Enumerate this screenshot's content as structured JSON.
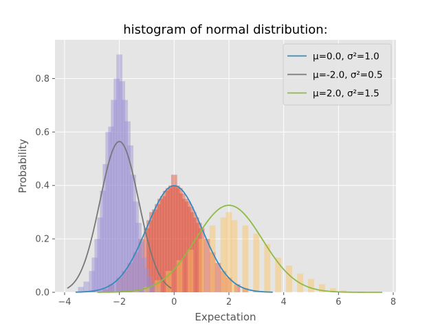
{
  "chart_data": {
    "type": "histogram",
    "title": "histogram of normal distribution:",
    "xlabel": "Expectation",
    "ylabel": "Probability",
    "xlim": [
      -4.35,
      8.1
    ],
    "ylim": [
      0,
      0.945
    ],
    "xticks": [
      -4,
      -2,
      0,
      2,
      4,
      6,
      8
    ],
    "yticks": [
      0.0,
      0.2,
      0.4,
      0.6,
      0.8
    ],
    "xtick_labels": [
      "−4",
      "−2",
      "0",
      "2",
      "4",
      "6",
      "8"
    ],
    "ytick_labels": [
      "0.0",
      "0.2",
      "0.4",
      "0.6",
      "0.8"
    ],
    "grid": true,
    "legend_position": "top-right",
    "background_color": "#e5e5e5",
    "series": [
      {
        "legend_label": "μ=0.0, σ²=1.0",
        "mu": 0.0,
        "sigma2": 1.0,
        "line_color": "#348abd",
        "hist_color": "#e24a33",
        "curve_x_range": [
          -3.6,
          3.6
        ],
        "hist_bins": [
          [
            -3.0,
            0.005
          ],
          [
            -2.5,
            0.012
          ],
          [
            -2.3,
            0.03
          ],
          [
            -2.0,
            0.055
          ],
          [
            -1.8,
            0.08
          ],
          [
            -1.6,
            0.11
          ],
          [
            -1.4,
            0.15
          ],
          [
            -1.2,
            0.2
          ],
          [
            -1.0,
            0.24
          ],
          [
            -0.9,
            0.27
          ],
          [
            -0.8,
            0.3
          ],
          [
            -0.7,
            0.31
          ],
          [
            -0.6,
            0.33
          ],
          [
            -0.5,
            0.35
          ],
          [
            -0.4,
            0.36
          ],
          [
            -0.3,
            0.38
          ],
          [
            -0.2,
            0.39
          ],
          [
            -0.1,
            0.4
          ],
          [
            0.0,
            0.44
          ],
          [
            0.1,
            0.4
          ],
          [
            0.2,
            0.39
          ],
          [
            0.3,
            0.37
          ],
          [
            0.4,
            0.35
          ],
          [
            0.5,
            0.34
          ],
          [
            0.6,
            0.32
          ],
          [
            0.7,
            0.3
          ],
          [
            0.8,
            0.28
          ],
          [
            0.9,
            0.26
          ],
          [
            1.0,
            0.24
          ],
          [
            1.2,
            0.2
          ],
          [
            1.4,
            0.15
          ],
          [
            1.6,
            0.11
          ],
          [
            1.8,
            0.08
          ],
          [
            2.0,
            0.055
          ],
          [
            2.3,
            0.03
          ],
          [
            2.6,
            0.015
          ],
          [
            3.0,
            0.005
          ]
        ]
      },
      {
        "legend_label": "μ=-2.0, σ²=0.5",
        "mu": -2.0,
        "sigma2": 0.5,
        "line_color": "#777777",
        "hist_color": "#988ed5",
        "curve_x_range": [
          -3.9,
          -0.1
        ],
        "hist_bins": [
          [
            -3.4,
            0.02
          ],
          [
            -3.2,
            0.04
          ],
          [
            -3.0,
            0.08
          ],
          [
            -2.9,
            0.13
          ],
          [
            -2.8,
            0.2
          ],
          [
            -2.7,
            0.28
          ],
          [
            -2.6,
            0.38
          ],
          [
            -2.5,
            0.48
          ],
          [
            -2.4,
            0.6
          ],
          [
            -2.3,
            0.62
          ],
          [
            -2.2,
            0.72
          ],
          [
            -2.1,
            0.8
          ],
          [
            -2.0,
            0.89
          ],
          [
            -1.9,
            0.79
          ],
          [
            -1.8,
            0.72
          ],
          [
            -1.7,
            0.64
          ],
          [
            -1.6,
            0.55
          ],
          [
            -1.5,
            0.44
          ],
          [
            -1.4,
            0.34
          ],
          [
            -1.3,
            0.26
          ],
          [
            -1.2,
            0.19
          ],
          [
            -1.1,
            0.13
          ],
          [
            -1.0,
            0.09
          ],
          [
            -0.9,
            0.06
          ],
          [
            -0.8,
            0.035
          ],
          [
            -0.6,
            0.015
          ]
        ]
      },
      {
        "legend_label": "μ=2.0, σ²=1.5",
        "mu": 2.0,
        "sigma2": 1.5,
        "line_color": "#8eba42",
        "hist_color": "#fbc15e",
        "curve_x_range": [
          -2.8,
          7.6
        ],
        "hist_bins": [
          [
            -1.4,
            0.005
          ],
          [
            -1.0,
            0.02
          ],
          [
            -0.6,
            0.045
          ],
          [
            -0.2,
            0.08
          ],
          [
            0.2,
            0.12
          ],
          [
            0.6,
            0.16
          ],
          [
            1.0,
            0.2
          ],
          [
            1.4,
            0.25
          ],
          [
            1.8,
            0.28
          ],
          [
            2.0,
            0.3
          ],
          [
            2.2,
            0.27
          ],
          [
            2.6,
            0.25
          ],
          [
            3.0,
            0.22
          ],
          [
            3.4,
            0.18
          ],
          [
            3.8,
            0.13
          ],
          [
            4.2,
            0.1
          ],
          [
            4.6,
            0.07
          ],
          [
            5.0,
            0.05
          ],
          [
            5.4,
            0.03
          ],
          [
            5.8,
            0.015
          ],
          [
            6.2,
            0.007
          ]
        ]
      }
    ]
  }
}
